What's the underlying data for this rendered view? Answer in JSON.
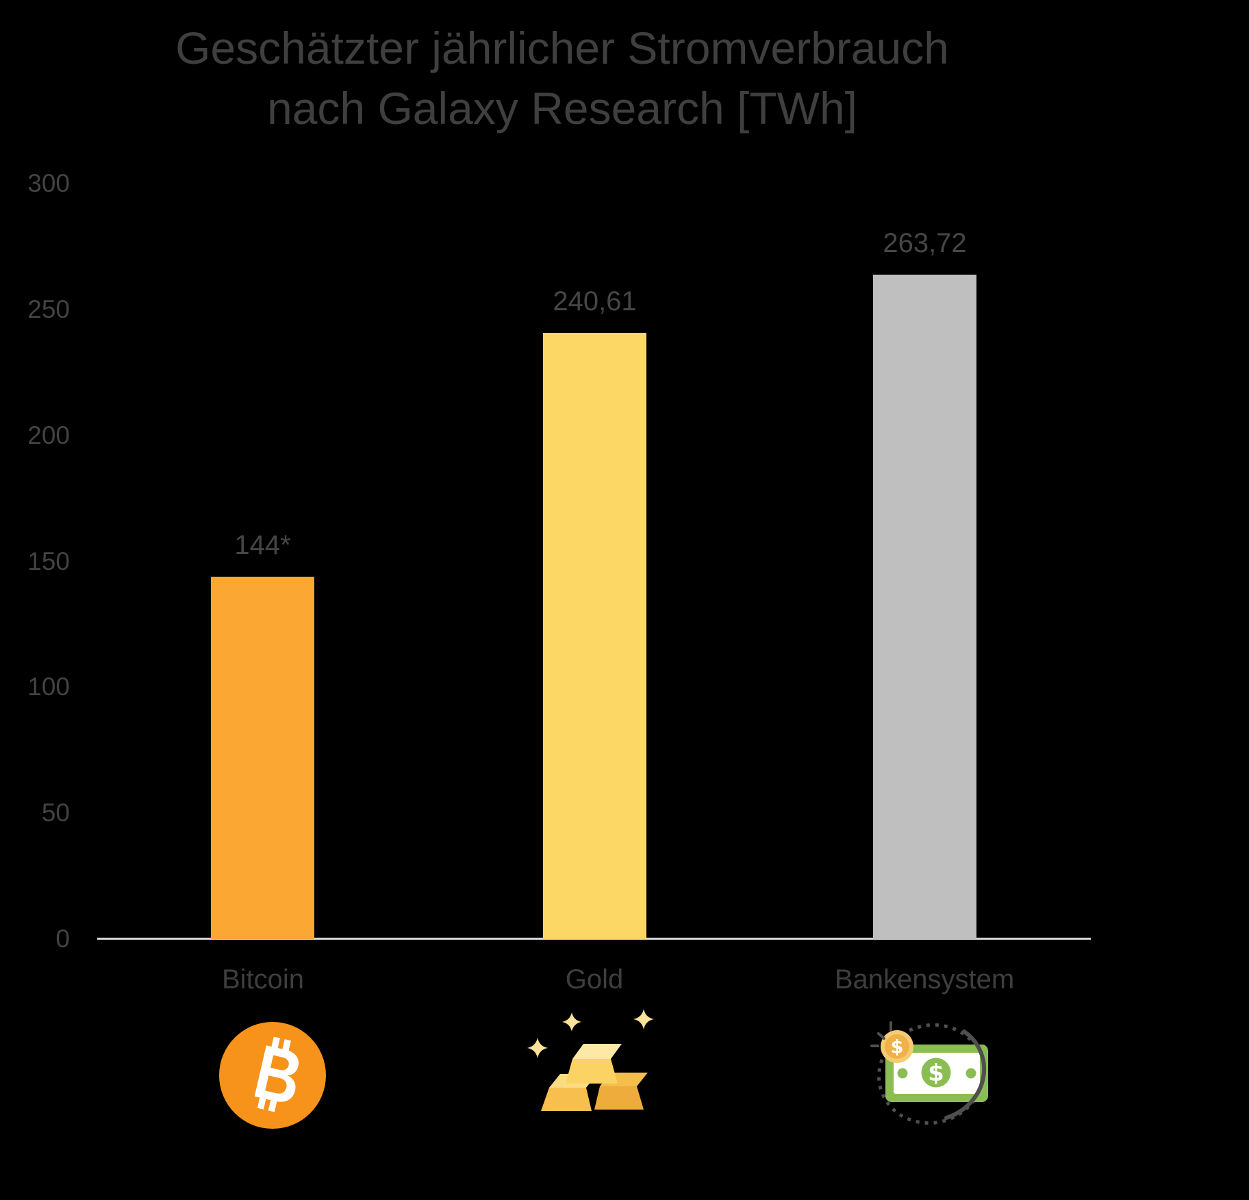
{
  "title": {
    "line1": "Geschätzter jährlicher Stromverbrauch",
    "line2": "nach Galaxy Research [TWh]"
  },
  "chart_data": {
    "type": "bar",
    "title": "Geschätzter jährlicher Stromverbrauch nach Galaxy Research [TWh]",
    "unit": "TWh",
    "categories": [
      "Bitcoin",
      "Gold",
      "Bankensystem"
    ],
    "values": [
      144,
      240.61,
      263.72
    ],
    "value_labels": [
      "144*",
      "240,61",
      "263,72"
    ],
    "bar_colors": [
      "#FBA733",
      "#FCD765",
      "#BFBFBF"
    ],
    "ylim": [
      0,
      300
    ],
    "yticks": [
      0,
      50,
      100,
      150,
      200,
      250,
      300
    ],
    "ytick_labels": [
      "0",
      "50",
      "100",
      "150",
      "200",
      "250",
      "300"
    ],
    "grid": false,
    "legend": false,
    "icons": [
      {
        "name": "bitcoin-coin-icon",
        "main_color": "#F7931A"
      },
      {
        "name": "gold-bars-icon",
        "main_color": "#F8C855"
      },
      {
        "name": "banknote-coin-icon",
        "main_color": "#8BBE52"
      }
    ]
  },
  "style": {
    "background": "#000000",
    "title_color": "#3F3F3F",
    "tick_color": "#434343",
    "label_color": "#464646",
    "axis_line_color": "#D9D9D9"
  }
}
